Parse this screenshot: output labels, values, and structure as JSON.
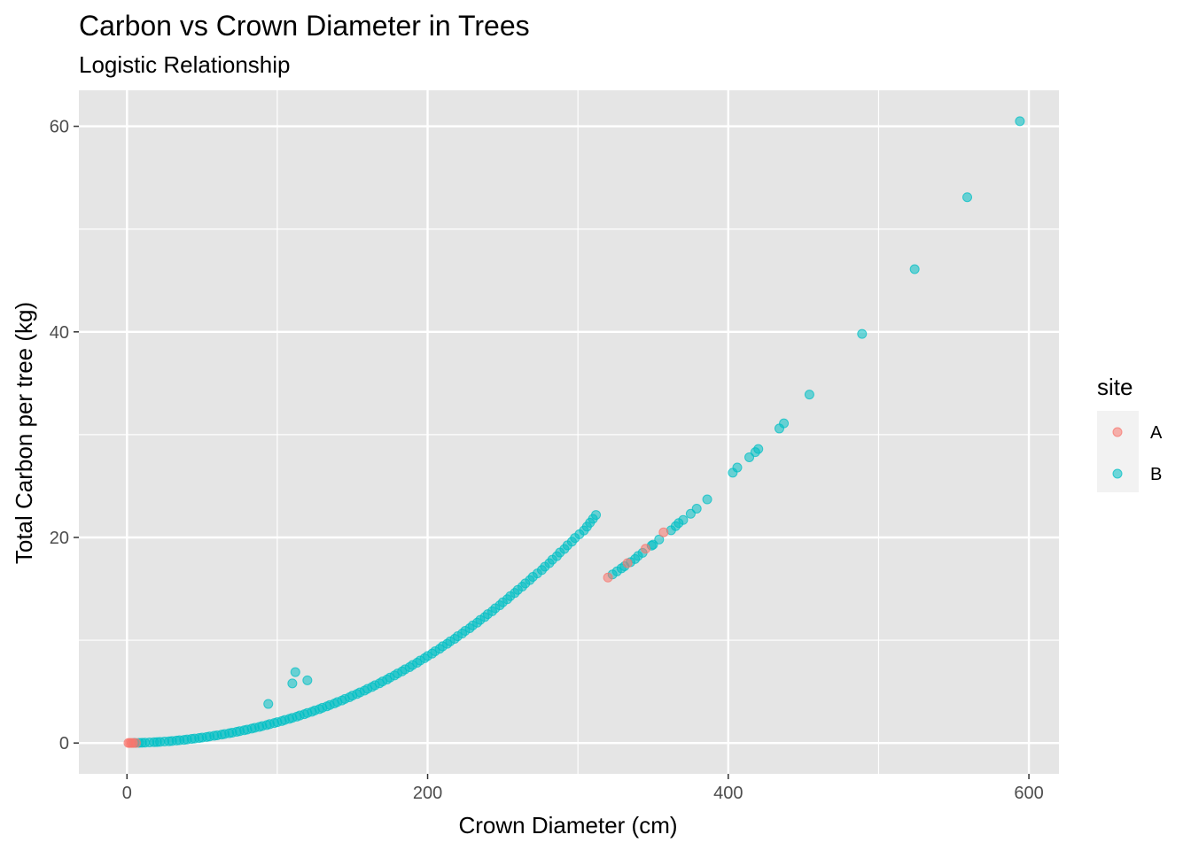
{
  "chart_data": {
    "type": "scatter",
    "title": "Carbon vs Crown Diameter in Trees",
    "subtitle": "Logistic Relationship",
    "xlabel": "Crown Diameter (cm)",
    "ylabel": "Total Carbon per tree (kg)",
    "xlim": [
      -32,
      620
    ],
    "ylim": [
      -3,
      63.5
    ],
    "x_ticks": [
      0,
      200,
      400,
      600
    ],
    "y_ticks": [
      0,
      20,
      40,
      60
    ],
    "x_tick_labels": [
      "0",
      "200",
      "400",
      "600"
    ],
    "y_tick_labels": [
      "0",
      "20",
      "40",
      "60"
    ],
    "grid": true,
    "panel_background": "#e5e5e5",
    "legend": {
      "title": "site",
      "position": "right",
      "entries": [
        {
          "label": "A",
          "color": "#F8766D"
        },
        {
          "label": "B",
          "color": "#00BFC4"
        }
      ]
    },
    "series": [
      {
        "name": "A",
        "color": "#F8766D",
        "x": [
          1,
          2,
          3,
          4,
          6,
          320,
          333,
          345,
          357
        ],
        "y": [
          0.0,
          0.0,
          0.0,
          0.0,
          0.0,
          16.1,
          17.5,
          18.9,
          20.5
        ]
      },
      {
        "name": "B",
        "color": "#00BFC4",
        "x": [
          5,
          8,
          10,
          12,
          15,
          18,
          20,
          22,
          25,
          28,
          30,
          33,
          35,
          38,
          40,
          43,
          45,
          48,
          50,
          53,
          55,
          58,
          60,
          63,
          65,
          68,
          70,
          73,
          75,
          78,
          80,
          83,
          85,
          88,
          90,
          93,
          95,
          98,
          100,
          103,
          105,
          108,
          110,
          113,
          115,
          118,
          120,
          123,
          125,
          128,
          130,
          133,
          135,
          138,
          140,
          143,
          145,
          148,
          150,
          153,
          155,
          158,
          160,
          163,
          165,
          168,
          170,
          173,
          175,
          178,
          180,
          183,
          185,
          188,
          190,
          193,
          195,
          198,
          200,
          203,
          205,
          208,
          210,
          213,
          215,
          218,
          220,
          223,
          225,
          228,
          230,
          233,
          235,
          238,
          240,
          243,
          245,
          248,
          250,
          253,
          255,
          258,
          260,
          263,
          265,
          268,
          270,
          273,
          276,
          278,
          281,
          283,
          286,
          288,
          291,
          293,
          296,
          298,
          301,
          304,
          306,
          308,
          310,
          312,
          323,
          326,
          329,
          331,
          335,
          338,
          340,
          343,
          349,
          350,
          354,
          362,
          365,
          367,
          370,
          375,
          379,
          386,
          403,
          406,
          414,
          418,
          420,
          434,
          437,
          454,
          489,
          524,
          559,
          594,
          94,
          110,
          112,
          120
        ],
        "y": [
          0.01,
          0.02,
          0.03,
          0.04,
          0.06,
          0.08,
          0.09,
          0.11,
          0.14,
          0.17,
          0.2,
          0.24,
          0.27,
          0.31,
          0.35,
          0.4,
          0.44,
          0.49,
          0.53,
          0.59,
          0.64,
          0.7,
          0.75,
          0.82,
          0.88,
          0.95,
          1.01,
          1.09,
          1.16,
          1.24,
          1.31,
          1.4,
          1.48,
          1.57,
          1.65,
          1.75,
          1.84,
          1.94,
          2.03,
          2.14,
          2.24,
          2.35,
          2.45,
          2.57,
          2.68,
          2.8,
          2.92,
          3.04,
          3.17,
          3.3,
          3.43,
          3.57,
          3.7,
          3.85,
          3.99,
          4.14,
          4.29,
          4.45,
          4.61,
          4.77,
          4.93,
          5.1,
          5.27,
          5.45,
          5.62,
          5.81,
          5.99,
          6.18,
          6.37,
          6.57,
          6.77,
          6.97,
          7.17,
          7.38,
          7.59,
          7.81,
          8.03,
          8.25,
          8.47,
          8.7,
          8.93,
          9.17,
          9.41,
          9.65,
          9.89,
          10.14,
          10.39,
          10.65,
          10.91,
          11.17,
          11.44,
          11.71,
          11.98,
          12.26,
          12.54,
          12.82,
          13.11,
          13.4,
          13.69,
          13.99,
          14.29,
          14.6,
          14.9,
          15.22,
          15.53,
          15.85,
          16.17,
          16.5,
          16.83,
          17.16,
          17.5,
          17.84,
          18.18,
          18.53,
          18.88,
          19.23,
          19.59,
          19.95,
          20.31,
          20.68,
          21.05,
          21.43,
          21.81,
          22.19,
          16.4,
          16.7,
          17.0,
          17.2,
          17.6,
          17.9,
          18.2,
          18.5,
          19.2,
          19.3,
          19.8,
          20.7,
          21.1,
          21.4,
          21.7,
          22.3,
          22.8,
          23.7,
          26.3,
          26.8,
          27.8,
          28.3,
          28.6,
          30.6,
          31.1,
          33.9,
          39.8,
          46.1,
          53.1,
          60.5,
          3.8,
          5.8,
          6.9,
          6.1
        ]
      }
    ]
  }
}
